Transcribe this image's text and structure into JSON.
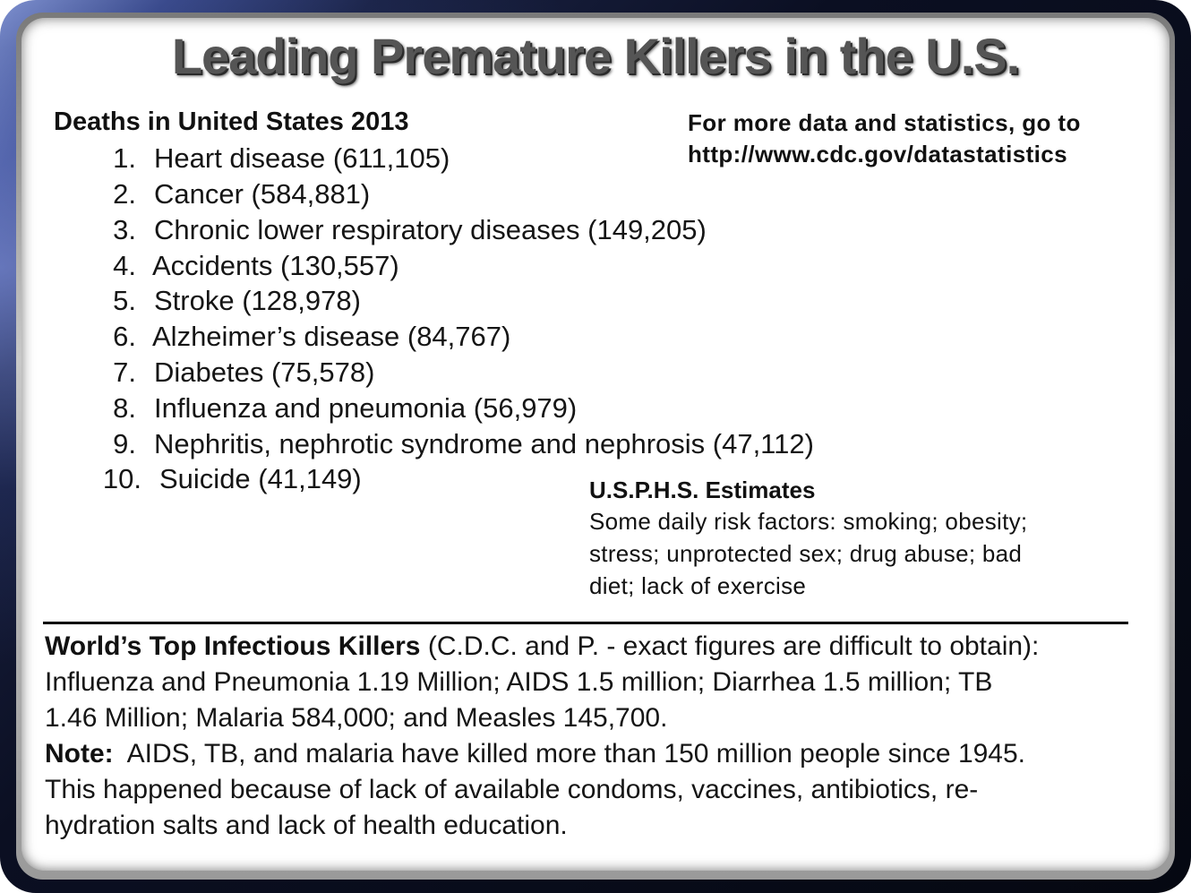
{
  "title": "Leading Premature Killers in the U.S.",
  "deaths": {
    "heading": "Deaths in United States 2013",
    "items": [
      {
        "num": "1.",
        "text": "Heart disease (611,105)"
      },
      {
        "num": "2.",
        "text": "Cancer (584,881)"
      },
      {
        "num": "3.",
        "text": "Chronic lower respiratory diseases (149,205)"
      },
      {
        "num": "4.",
        "text": "Accidents (130,557)"
      },
      {
        "num": "5.",
        "text": "Stroke (128,978)"
      },
      {
        "num": "6.",
        "text": "Alzheimer’s disease (84,767)"
      },
      {
        "num": "7.",
        "text": "Diabetes (75,578)"
      },
      {
        "num": "8.",
        "text": "Influenza and pneumonia (56,979)"
      },
      {
        "num": "9.",
        "text": "Nephritis, nephrotic syndrome and nephrosis (47,112)"
      },
      {
        "num": "10.",
        "text": "Suicide (41,149)"
      }
    ]
  },
  "more_info": {
    "line1": "For more data and statistics, go to",
    "line2": "http://www.cdc.gov/datastatistics"
  },
  "usphs": {
    "title": "U.S.P.H.S. Estimates",
    "body_lines": [
      "Some daily risk factors: smoking; obesity;",
      "stress; unprotected sex; drug abuse; bad",
      "diet; lack of exercise"
    ]
  },
  "world": {
    "heading": "World’s Top Infectious Killers",
    "heading_rest": " (C.D.C. and P. - exact figures are difficult to obtain):",
    "lines": [
      "Influenza and Pneumonia 1.19 Million; AIDS 1.5 million; Diarrhea 1.5 million; TB",
      "1.46 Million; Malaria 584,000; and Measles 145,700."
    ],
    "note_label": "Note:",
    "note_rest": "  AIDS, TB, and malaria have killed more than 150 million people since 1945.",
    "note_lines": [
      "This happened because of lack of available condoms, vaccines, antibiotics, re-",
      "hydration salts and lack of health education."
    ]
  }
}
